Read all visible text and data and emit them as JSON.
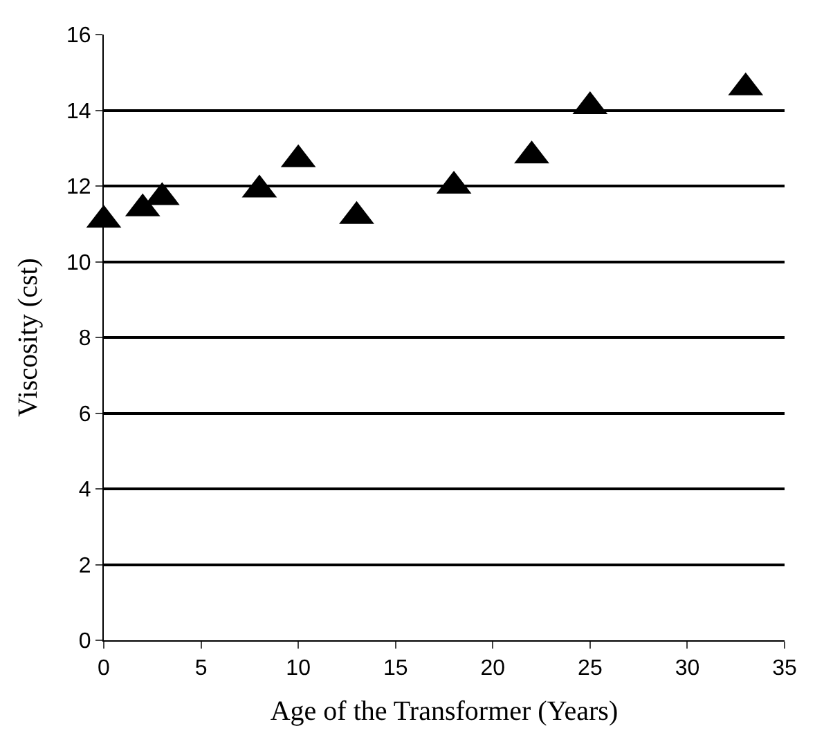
{
  "chart_data": {
    "type": "scatter",
    "xlabel": "Age of the Transformer (Years)",
    "ylabel": "Viscosity (cst)",
    "x": [
      0,
      2,
      3,
      8,
      10,
      13,
      18,
      22,
      25,
      33
    ],
    "values": [
      11.1,
      11.4,
      11.7,
      11.9,
      12.7,
      11.2,
      12.0,
      12.8,
      14.1,
      14.6
    ],
    "color": "#000000",
    "marker": "triangle",
    "xlim": [
      0,
      35
    ],
    "xticks": [
      0,
      5,
      10,
      15,
      20,
      25,
      30,
      35
    ],
    "ylim": [
      0,
      16
    ],
    "yticks": [
      0,
      2,
      4,
      6,
      8,
      10,
      12,
      14,
      16
    ],
    "grid": "y"
  }
}
